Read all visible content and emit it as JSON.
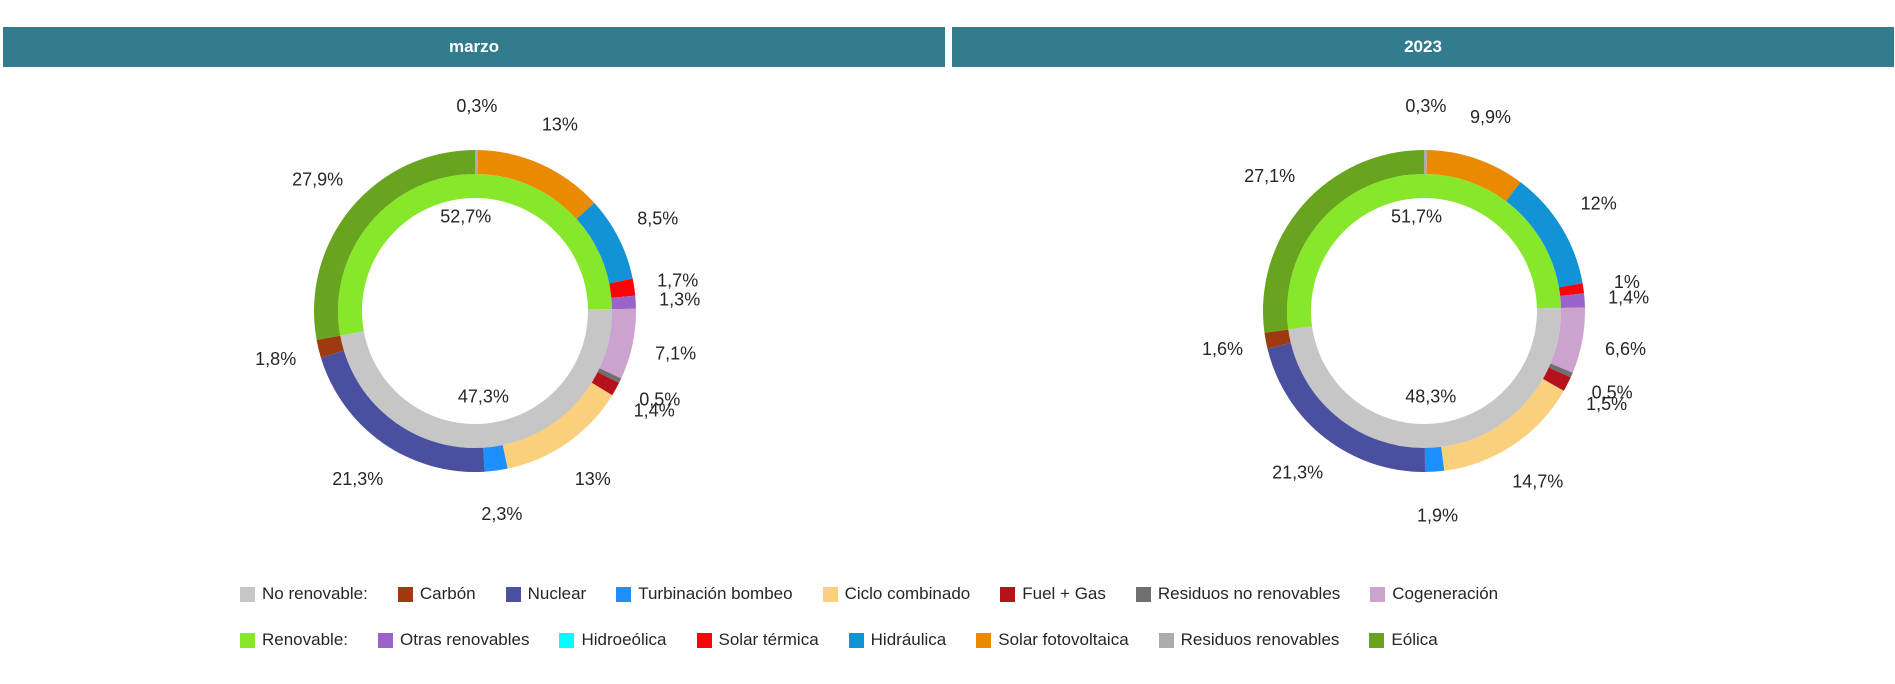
{
  "header": {
    "bg": "#337C8E",
    "text_color": "#FFFFFF"
  },
  "palette": {
    "no_renovable": "#C6C6C6",
    "carbon": "#9E3A0F",
    "nuclear": "#4B4FA0",
    "turbinacion_bombeo": "#1E8FFF",
    "ciclo_combinado": "#FBD07D",
    "fuel_gas": "#B5121B",
    "residuos_no_renovables": "#6F6F6F",
    "cogeneracion": "#CCA3CE",
    "renovable": "#87E72A",
    "otras_renovables": "#9A63C9",
    "hidroeolica": "#00FFFF",
    "solar_termica": "#FB0307",
    "hidraulica": "#1193D6",
    "solar_fotovoltaica": "#EA8A00",
    "residuos_renovables": "#ACACAC",
    "eolica": "#68A41D"
  },
  "chart_data": [
    {
      "type": "pie",
      "subtype": "two-ring-donut",
      "title": "marzo",
      "legend_position": "bottom",
      "inner_ring": [
        {
          "key": "renovable",
          "label": "Renovable",
          "value": 52.7,
          "display": "52,7%"
        },
        {
          "key": "no_renovable",
          "label": "No renovable",
          "value": 47.3,
          "display": "47,3%"
        }
      ],
      "outer_ring": [
        {
          "key": "residuos_renovables",
          "label": "Residuos renovables",
          "group": "renovable",
          "value": 0.3,
          "display": "0,3%"
        },
        {
          "key": "solar_fotovoltaica",
          "label": "Solar fotovoltaica",
          "group": "renovable",
          "value": 13,
          "display": "13%"
        },
        {
          "key": "hidraulica",
          "label": "Hidráulica",
          "group": "renovable",
          "value": 8.5,
          "display": "8,5%"
        },
        {
          "key": "solar_termica",
          "label": "Solar térmica",
          "group": "renovable",
          "value": 1.7,
          "display": "1,7%"
        },
        {
          "key": "otras_renovables",
          "label": "Otras renovables",
          "group": "renovable",
          "value": 1.3,
          "display": "1,3%"
        },
        {
          "key": "cogeneracion",
          "label": "Cogeneración",
          "group": "no_renovable",
          "value": 7.1,
          "display": "7,1%"
        },
        {
          "key": "residuos_no_renovables",
          "label": "Residuos no renovables",
          "group": "no_renovable",
          "value": 0.5,
          "display": "0,5%"
        },
        {
          "key": "fuel_gas",
          "label": "Fuel + Gas",
          "group": "no_renovable",
          "value": 1.4,
          "display": "1,4%"
        },
        {
          "key": "ciclo_combinado",
          "label": "Ciclo combinado",
          "group": "no_renovable",
          "value": 13,
          "display": "13%"
        },
        {
          "key": "turbinacion_bombeo",
          "label": "Turbinación bombeo",
          "group": "no_renovable",
          "value": 2.3,
          "display": "2,3%"
        },
        {
          "key": "nuclear",
          "label": "Nuclear",
          "group": "no_renovable",
          "value": 21.3,
          "display": "21,3%"
        },
        {
          "key": "carbon",
          "label": "Carbón",
          "group": "no_renovable",
          "value": 1.8,
          "display": "1,8%"
        },
        {
          "key": "eolica",
          "label": "Eólica",
          "group": "renovable",
          "value": 27.9,
          "display": "27,9%"
        }
      ]
    },
    {
      "type": "pie",
      "subtype": "two-ring-donut",
      "title": "2023",
      "legend_position": "bottom",
      "inner_ring": [
        {
          "key": "renovable",
          "label": "Renovable",
          "value": 51.7,
          "display": "51,7%"
        },
        {
          "key": "no_renovable",
          "label": "No renovable",
          "value": 48.3,
          "display": "48,3%"
        }
      ],
      "outer_ring": [
        {
          "key": "residuos_renovables",
          "label": "Residuos renovables",
          "group": "renovable",
          "value": 0.3,
          "display": "0,3%"
        },
        {
          "key": "solar_fotovoltaica",
          "label": "Solar fotovoltaica",
          "group": "renovable",
          "value": 9.9,
          "display": "9,9%"
        },
        {
          "key": "hidraulica",
          "label": "Hidráulica",
          "group": "renovable",
          "value": 12,
          "display": "12%"
        },
        {
          "key": "solar_termica",
          "label": "Solar térmica",
          "group": "renovable",
          "value": 1,
          "display": "1%"
        },
        {
          "key": "otras_renovables",
          "label": "Otras renovables",
          "group": "renovable",
          "value": 1.4,
          "display": "1,4%"
        },
        {
          "key": "cogeneracion",
          "label": "Cogeneración",
          "group": "no_renovable",
          "value": 6.6,
          "display": "6,6%"
        },
        {
          "key": "residuos_no_renovables",
          "label": "Residuos no renovables",
          "group": "no_renovable",
          "value": 0.5,
          "display": "0,5%"
        },
        {
          "key": "fuel_gas",
          "label": "Fuel + Gas",
          "group": "no_renovable",
          "value": 1.5,
          "display": "1,5%"
        },
        {
          "key": "ciclo_combinado",
          "label": "Ciclo combinado",
          "group": "no_renovable",
          "value": 14.7,
          "display": "14,7%"
        },
        {
          "key": "turbinacion_bombeo",
          "label": "Turbinación bombeo",
          "group": "no_renovable",
          "value": 1.9,
          "display": "1,9%"
        },
        {
          "key": "nuclear",
          "label": "Nuclear",
          "group": "no_renovable",
          "value": 21.3,
          "display": "21,3%"
        },
        {
          "key": "carbon",
          "label": "Carbón",
          "group": "no_renovable",
          "value": 1.6,
          "display": "1,6%"
        },
        {
          "key": "eolica",
          "label": "Eólica",
          "group": "renovable",
          "value": 27.1,
          "display": "27,1%"
        }
      ]
    }
  ],
  "legend": {
    "rows": [
      [
        {
          "key": "no_renovable",
          "label": "No renovable:"
        },
        {
          "key": "carbon",
          "label": "Carbón"
        },
        {
          "key": "nuclear",
          "label": "Nuclear"
        },
        {
          "key": "turbinacion_bombeo",
          "label": "Turbinación bombeo"
        },
        {
          "key": "ciclo_combinado",
          "label": "Ciclo combinado"
        },
        {
          "key": "fuel_gas",
          "label": "Fuel + Gas"
        },
        {
          "key": "residuos_no_renovables",
          "label": "Residuos no renovables"
        },
        {
          "key": "cogeneracion",
          "label": "Cogeneración"
        }
      ],
      [
        {
          "key": "renovable",
          "label": "Renovable:"
        },
        {
          "key": "otras_renovables",
          "label": "Otras renovables"
        },
        {
          "key": "hidroeolica",
          "label": "Hidroeólica"
        },
        {
          "key": "solar_termica",
          "label": "Solar térmica"
        },
        {
          "key": "hidraulica",
          "label": "Hidráulica"
        },
        {
          "key": "solar_fotovoltaica",
          "label": "Solar fotovoltaica"
        },
        {
          "key": "residuos_renovables",
          "label": "Residuos renovables"
        },
        {
          "key": "eolica",
          "label": "Eólica"
        }
      ]
    ]
  }
}
